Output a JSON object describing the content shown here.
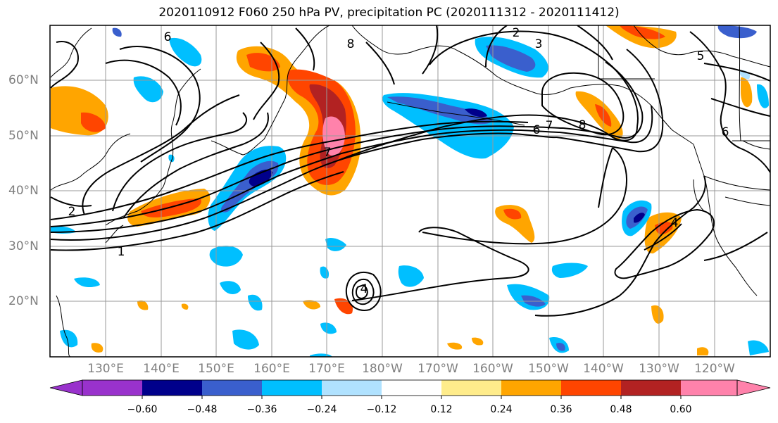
{
  "title": "2020110912 F060 250 hPa PV, precipitation PC (2020111312 - 2020111412)",
  "lat_labels": [
    "60°N",
    "50°N",
    "40°N",
    "30°N",
    "20°N"
  ],
  "lon_labels": [
    "130°E",
    "140°E",
    "150°E",
    "160°E",
    "170°E",
    "180°W",
    "170°W",
    "160°W",
    "150°W",
    "140°W",
    "130°W",
    "120°W"
  ],
  "colorbar": {
    "ticks": [
      "−0.60",
      "−0.48",
      "−0.36",
      "−0.24",
      "−0.12",
      "0.12",
      "0.24",
      "0.36",
      "0.48",
      "0.60"
    ],
    "colors": [
      "#9932cc",
      "#00008b",
      "#3a5fcd",
      "#00bfff",
      "#b0e2ff",
      "#ffffff",
      "#ffec8b",
      "#ffa500",
      "#ff4500",
      "#b22222",
      "#ff82ab"
    ]
  },
  "contour_labels": [
    "1",
    "2",
    "2",
    "3",
    "4",
    "4",
    "5",
    "6",
    "6",
    "6",
    "7",
    "7",
    "8",
    "8"
  ]
}
